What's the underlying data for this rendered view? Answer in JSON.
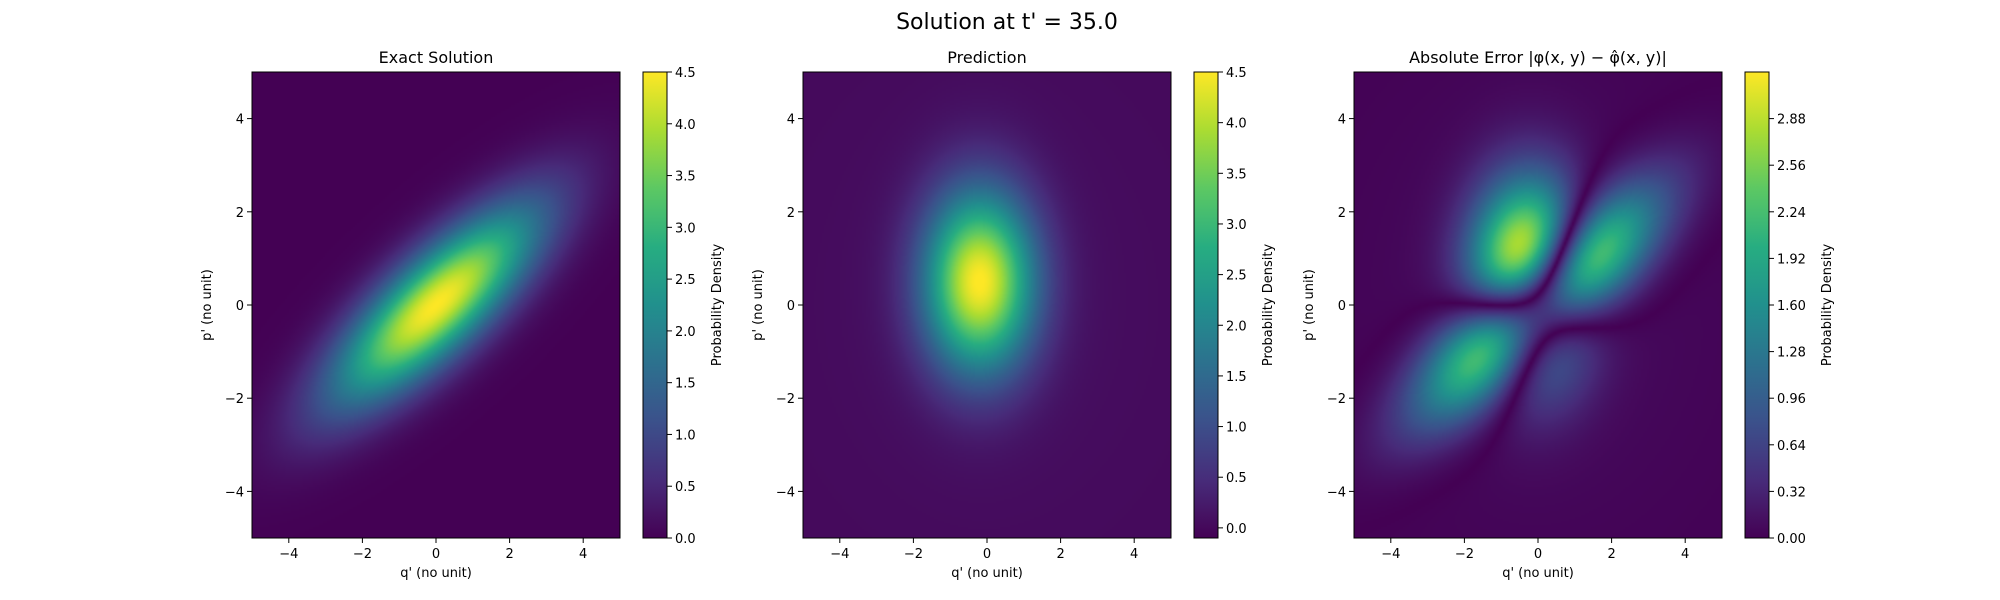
{
  "figure": {
    "suptitle": "Solution at t' = 35.0"
  },
  "chart_data": [
    {
      "type": "heatmap",
      "title": "Exact Solution",
      "xlabel": "q' (no unit)",
      "ylabel": "p' (no unit)",
      "xlim": [
        -5,
        5
      ],
      "ylim": [
        -5,
        5
      ],
      "xticks": [
        "−4",
        "−2",
        "0",
        "2",
        "4"
      ],
      "xtick_values": [
        -4,
        -2,
        0,
        2,
        4
      ],
      "yticks": [
        "−4",
        "−2",
        "0",
        "2",
        "4"
      ],
      "ytick_values": [
        -4,
        -2,
        0,
        2,
        4
      ],
      "colormap": "viridis",
      "colorbar_label": "Probability Density",
      "colorbar_range": [
        0.0,
        4.5
      ],
      "colorbar_ticks": [
        "0.0",
        "0.5",
        "1.0",
        "1.5",
        "2.0",
        "2.5",
        "3.0",
        "3.5",
        "4.0",
        "4.5"
      ],
      "colorbar_tick_values": [
        0.0,
        0.5,
        1.0,
        1.5,
        2.0,
        2.5,
        3.0,
        3.5,
        4.0,
        4.5
      ],
      "field": {
        "kind": "gaussian_sum",
        "components": [
          {
            "amp": 4.5,
            "cx": 0.0,
            "cy": 0.0,
            "sx": 2.3,
            "sy": 0.75,
            "angle_deg": 35
          }
        ]
      }
    },
    {
      "type": "heatmap",
      "title": "Prediction",
      "xlabel": "q' (no unit)",
      "ylabel": "p' (no unit)",
      "xlim": [
        -5,
        5
      ],
      "ylim": [
        -5,
        5
      ],
      "xticks": [
        "−4",
        "−2",
        "0",
        "2",
        "4"
      ],
      "xtick_values": [
        -4,
        -2,
        0,
        2,
        4
      ],
      "yticks": [
        "−4",
        "−2",
        "0",
        "2",
        "4"
      ],
      "ytick_values": [
        -4,
        -2,
        0,
        2,
        4
      ],
      "colormap": "viridis",
      "colorbar_label": "Probability Density",
      "colorbar_range": [
        -0.1,
        4.5
      ],
      "colorbar_ticks": [
        "0.0",
        "0.5",
        "1.0",
        "1.5",
        "2.0",
        "2.5",
        "3.0",
        "3.5",
        "4.0",
        "4.5"
      ],
      "colorbar_tick_values": [
        0.0,
        0.5,
        1.0,
        1.5,
        2.0,
        2.5,
        3.0,
        3.5,
        4.0,
        4.5
      ],
      "field": {
        "kind": "gaussian_sum",
        "components": [
          {
            "amp": 4.45,
            "cx": -0.2,
            "cy": 0.5,
            "sx": 1.05,
            "sy": 1.35,
            "angle_deg": 0
          },
          {
            "amp": 0.08,
            "cx": 0.0,
            "cy": 0.0,
            "sx": 4.0,
            "sy": 4.0,
            "angle_deg": 0
          }
        ]
      }
    },
    {
      "type": "heatmap",
      "title": "Absolute Error |φ(x, y) − φ̂(x, y)|",
      "xlabel": "q' (no unit)",
      "ylabel": "p' (no unit)",
      "xlim": [
        -5,
        5
      ],
      "ylim": [
        -5,
        5
      ],
      "xticks": [
        "−4",
        "−2",
        "0",
        "2",
        "4"
      ],
      "xtick_values": [
        -4,
        -2,
        0,
        2,
        4
      ],
      "yticks": [
        "−4",
        "−2",
        "0",
        "2",
        "4"
      ],
      "ytick_values": [
        -4,
        -2,
        0,
        2,
        4
      ],
      "colormap": "viridis",
      "colorbar_label": "Probability Density",
      "colorbar_range": [
        0.0,
        3.2
      ],
      "colorbar_ticks": [
        "0.00",
        "0.32",
        "0.64",
        "0.96",
        "1.28",
        "1.60",
        "1.92",
        "2.24",
        "2.56",
        "2.88"
      ],
      "colorbar_tick_values": [
        0.0,
        0.32,
        0.64,
        0.96,
        1.28,
        1.6,
        1.92,
        2.24,
        2.56,
        2.88
      ],
      "field": {
        "kind": "abs_difference",
        "of": [
          0,
          1
        ]
      }
    }
  ]
}
